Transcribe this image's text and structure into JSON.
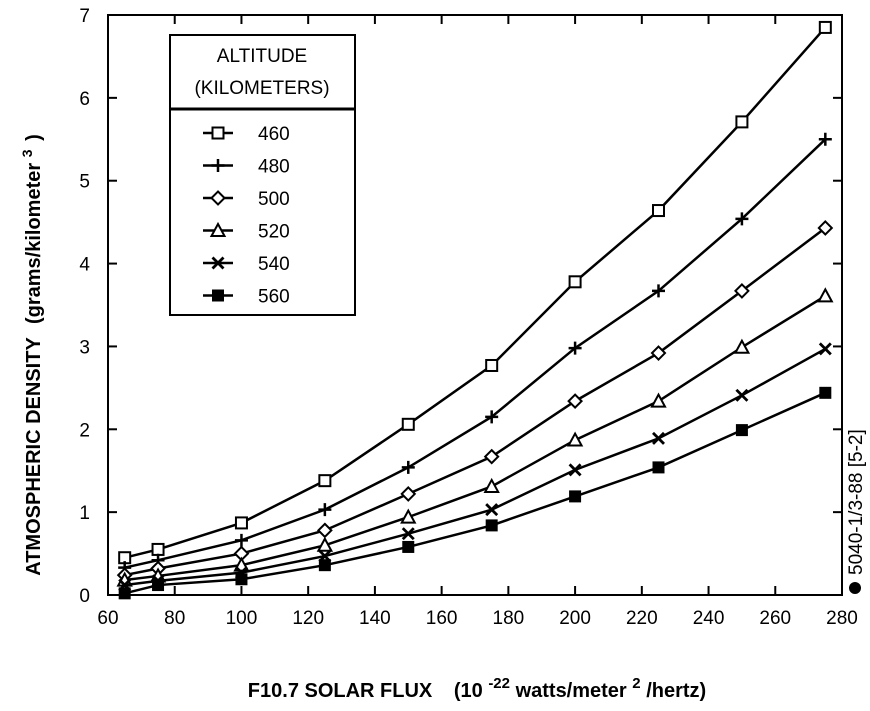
{
  "chart_data": {
    "type": "line",
    "xlabel": "F10.7 SOLAR FLUX",
    "xlabel_units_prefix": "(10",
    "xlabel_units_exp": "-22",
    "xlabel_units_mid": " watts/meter",
    "xlabel_units_exp2": "2",
    "xlabel_units_suffix": "/hertz)",
    "ylabel": "ATMOSPHERIC DENSITY",
    "ylabel_units": "(grams/kilometer",
    "ylabel_units_exp": "3",
    "ylabel_units_close": ")",
    "xlim": [
      60,
      280
    ],
    "ylim": [
      0,
      7
    ],
    "xticks": [
      60,
      80,
      100,
      120,
      140,
      160,
      180,
      200,
      220,
      240,
      260,
      280
    ],
    "yticks": [
      0,
      1,
      2,
      3,
      4,
      5,
      6,
      7
    ],
    "legend_title_line1": "ALTITUDE",
    "legend_title_line2": "(KILOMETERS)",
    "legend_placement": "top-left",
    "grid": false,
    "x": [
      65,
      75,
      100,
      125,
      150,
      175,
      200,
      225,
      250,
      275
    ],
    "series": [
      {
        "name": "460",
        "marker": "open-square",
        "values": [
          0.45,
          0.55,
          0.87,
          1.38,
          2.06,
          2.77,
          3.78,
          4.64,
          5.71,
          6.85
        ]
      },
      {
        "name": "480",
        "marker": "plus",
        "values": [
          0.33,
          0.42,
          0.66,
          1.03,
          1.54,
          2.15,
          2.98,
          3.67,
          4.54,
          5.5
        ]
      },
      {
        "name": "500",
        "marker": "open-diamond",
        "values": [
          0.24,
          0.32,
          0.5,
          0.78,
          1.22,
          1.67,
          2.34,
          2.92,
          3.67,
          4.43
        ]
      },
      {
        "name": "520",
        "marker": "open-triangle",
        "values": [
          0.18,
          0.23,
          0.36,
          0.6,
          0.94,
          1.31,
          1.87,
          2.34,
          2.99,
          3.61
        ]
      },
      {
        "name": "540",
        "marker": "x",
        "values": [
          0.12,
          0.17,
          0.27,
          0.47,
          0.74,
          1.03,
          1.51,
          1.89,
          2.41,
          2.97
        ]
      },
      {
        "name": "560",
        "marker": "filled-square",
        "values": [
          0.02,
          0.12,
          0.19,
          0.36,
          0.58,
          0.84,
          1.19,
          1.54,
          1.99,
          2.44
        ]
      }
    ],
    "side_note": "5040-1/3-88 [5-2]"
  }
}
